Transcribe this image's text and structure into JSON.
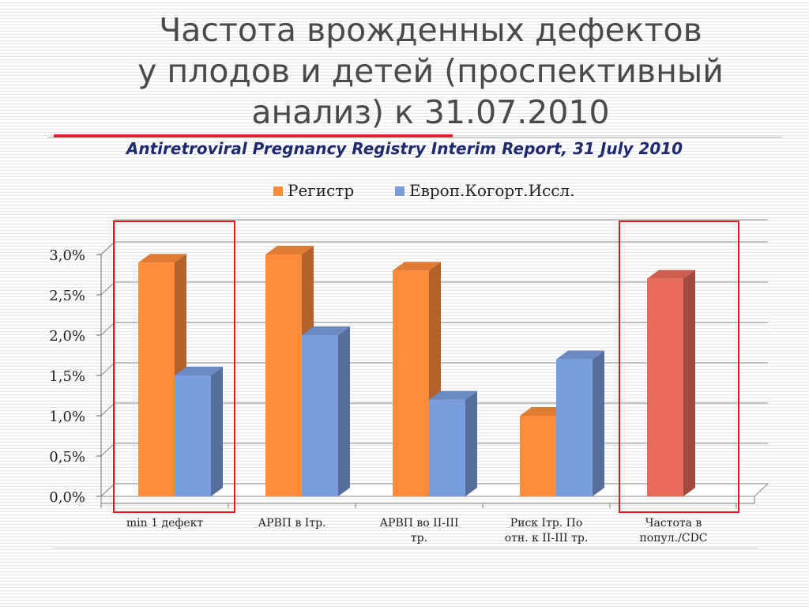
{
  "slide": {
    "title_lines": [
      "Частота врожденных дефектов",
      "у плодов и детей (проспективный",
      "анализ) к 31.07.2010"
    ],
    "subtitle": "Antiretroviral Pregnancy Registry Interim Report, 31 July 2010"
  },
  "chart_data": {
    "type": "bar",
    "categories": [
      [
        "min 1 дефект"
      ],
      [
        "АРВП в Iтр."
      ],
      [
        "АРВП во II-III",
        "тр."
      ],
      [
        "Риск Iтр. По",
        "отн. к II-III тр."
      ],
      [
        "Частота в",
        "попул./CDC"
      ]
    ],
    "series": [
      {
        "name": "Регистр",
        "values": [
          2.9,
          3.0,
          2.8,
          1.0,
          null
        ]
      },
      {
        "name": "Европ.Когорт.Иссл.",
        "values": [
          1.5,
          2.0,
          1.2,
          1.7,
          null
        ]
      }
    ],
    "extra_bars": [
      {
        "category_index": 4,
        "value": 2.7,
        "color": "#e96a5a"
      }
    ],
    "yticks": [
      "0,0%",
      "0,5%",
      "1,0%",
      "1,5%",
      "2,0%",
      "2,5%",
      "3,0%"
    ],
    "ylim": [
      0,
      3.0
    ],
    "highlighted_categories": [
      0,
      4
    ],
    "legend_position": "top",
    "grid": true,
    "colors": {
      "series1": "#ff8c3a",
      "series2": "#7a9ddd",
      "extra": "#e96a5a",
      "highlight": "#e8141c"
    }
  }
}
